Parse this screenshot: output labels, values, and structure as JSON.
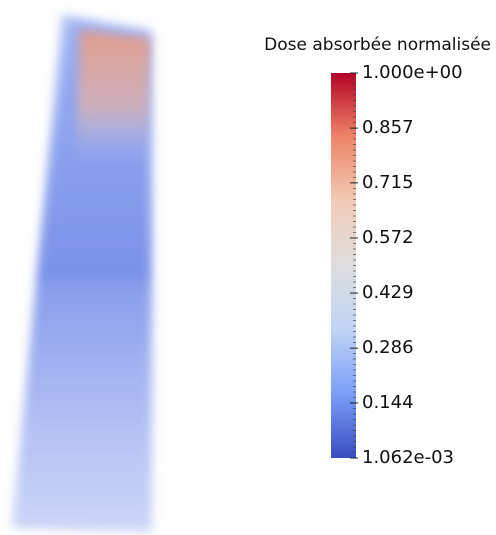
{
  "colorbar": {
    "title": "Dose absorbée normalisée",
    "range": [
      0.001062,
      1
    ],
    "ticks": [
      {
        "value": 1,
        "label": "1.000e+00"
      },
      0.857,
      0.715,
      0.572,
      0.429,
      0.286,
      0.144,
      {
        "value": 0.001062,
        "label": "1.062e-03"
      }
    ],
    "colors": [
      "#3b4cc0",
      "#7b9ff9",
      "#c0d4f5",
      "#dddddd",
      "#f2cbb7",
      "#ee8468",
      "#b40426"
    ]
  }
}
